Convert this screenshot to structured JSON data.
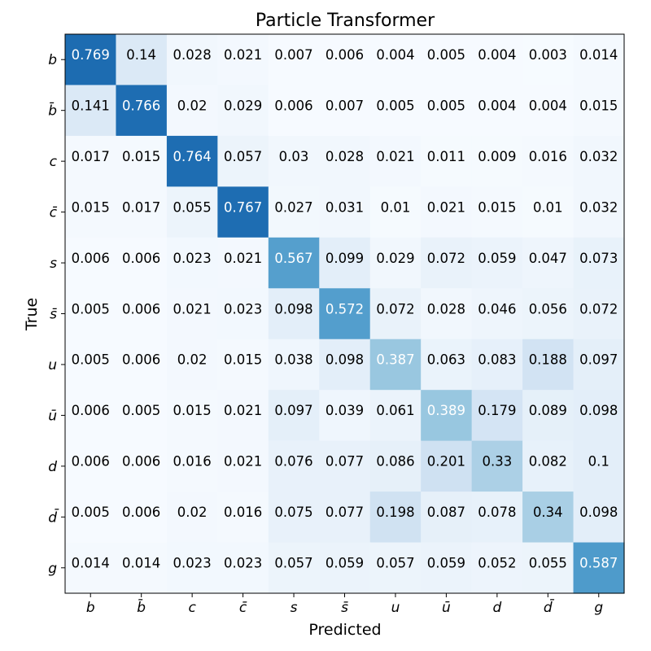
{
  "chart_data": {
    "type": "heatmap",
    "title": "Particle Transformer",
    "xlabel": "Predicted",
    "ylabel": "True",
    "x_categories": [
      "b",
      "b̄",
      "c",
      "c̄",
      "s",
      "s̄",
      "u",
      "ū",
      "d",
      "d̄",
      "g"
    ],
    "y_categories": [
      "b",
      "b̄",
      "c",
      "c̄",
      "s",
      "s̄",
      "u",
      "ū",
      "d",
      "d̄",
      "g"
    ],
    "values": [
      [
        0.769,
        0.14,
        0.028,
        0.021,
        0.007,
        0.006,
        0.004,
        0.005,
        0.004,
        0.003,
        0.014
      ],
      [
        0.141,
        0.766,
        0.02,
        0.029,
        0.006,
        0.007,
        0.005,
        0.005,
        0.004,
        0.004,
        0.015
      ],
      [
        0.017,
        0.015,
        0.764,
        0.057,
        0.03,
        0.028,
        0.021,
        0.011,
        0.009,
        0.016,
        0.032
      ],
      [
        0.015,
        0.017,
        0.055,
        0.767,
        0.027,
        0.031,
        0.01,
        0.021,
        0.015,
        0.01,
        0.032
      ],
      [
        0.006,
        0.006,
        0.023,
        0.021,
        0.567,
        0.099,
        0.029,
        0.072,
        0.059,
        0.047,
        0.073
      ],
      [
        0.005,
        0.006,
        0.021,
        0.023,
        0.098,
        0.572,
        0.072,
        0.028,
        0.046,
        0.056,
        0.072
      ],
      [
        0.005,
        0.006,
        0.02,
        0.015,
        0.038,
        0.098,
        0.387,
        0.063,
        0.083,
        0.188,
        0.097
      ],
      [
        0.006,
        0.005,
        0.015,
        0.021,
        0.097,
        0.039,
        0.061,
        0.389,
        0.179,
        0.089,
        0.098
      ],
      [
        0.006,
        0.006,
        0.016,
        0.021,
        0.076,
        0.077,
        0.086,
        0.201,
        0.33,
        0.082,
        0.1
      ],
      [
        0.005,
        0.006,
        0.02,
        0.016,
        0.075,
        0.077,
        0.198,
        0.087,
        0.078,
        0.34,
        0.098
      ],
      [
        0.014,
        0.014,
        0.023,
        0.023,
        0.057,
        0.059,
        0.057,
        0.059,
        0.052,
        0.055,
        0.587
      ]
    ],
    "value_range": [
      0,
      1
    ],
    "colormap": "Blues",
    "colors": {
      "low": "#f7fbff",
      "high": "#08306b",
      "text_dark": "#000000",
      "text_light": "#ffffff"
    },
    "grid": false,
    "legend": "none"
  }
}
